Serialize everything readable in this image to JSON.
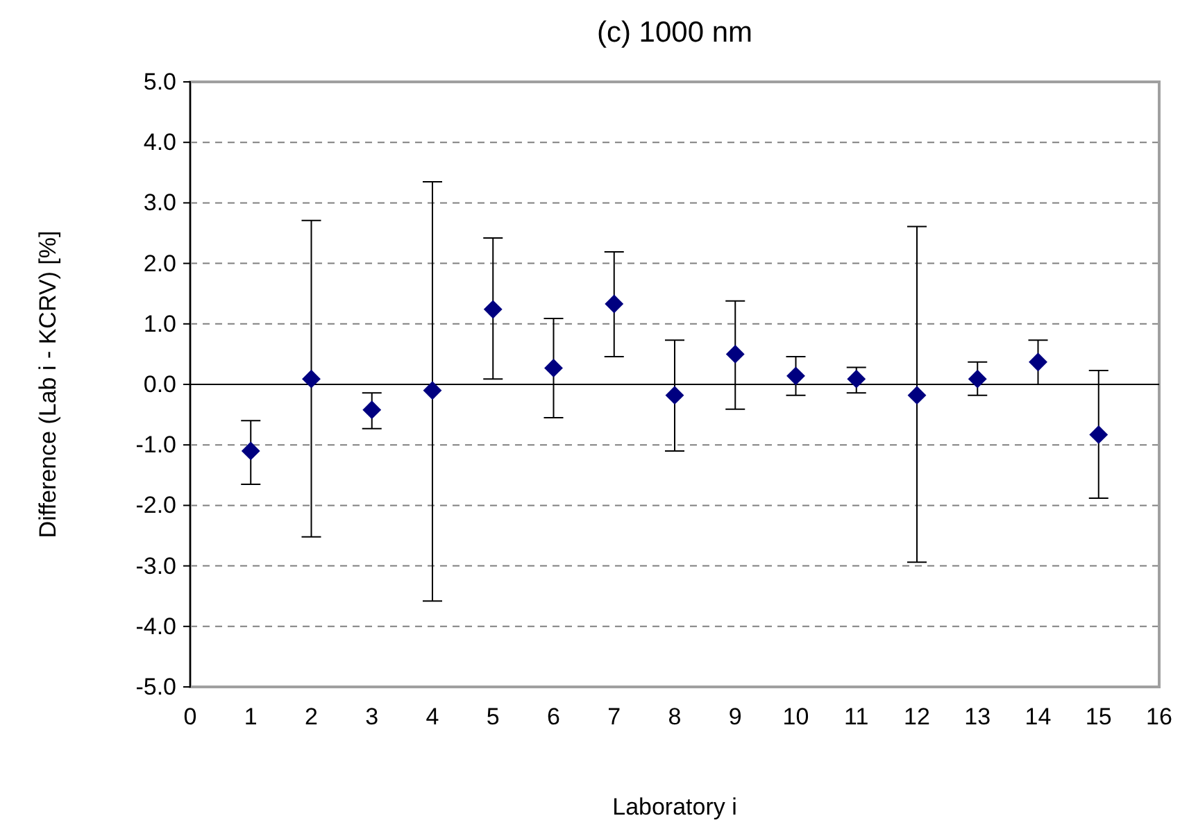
{
  "chart_data": {
    "type": "scatter",
    "title": "(c) 1000 nm",
    "xlabel": "Laboratory i",
    "ylabel": "Difference (Lab i - KCRV) [%]",
    "x": [
      1,
      2,
      3,
      4,
      5,
      6,
      7,
      8,
      9,
      10,
      11,
      12,
      13,
      14,
      15
    ],
    "series": [
      {
        "color": "#000080",
        "marker": "diamond",
        "values": [
          -1.1,
          0.09,
          -0.42,
          -0.1,
          1.24,
          0.27,
          1.33,
          -0.18,
          0.5,
          0.14,
          0.09,
          -0.18,
          0.09,
          0.37,
          -0.83
        ],
        "errors": [
          [
            -1.65,
            -0.6
          ],
          [
            -2.52,
            2.71
          ],
          [
            -0.73,
            -0.14
          ],
          [
            -3.58,
            3.35
          ],
          [
            0.09,
            2.42
          ],
          [
            -0.55,
            1.09
          ],
          [
            0.46,
            2.19
          ],
          [
            -1.1,
            0.73
          ],
          [
            -0.41,
            1.38
          ],
          [
            -0.18,
            0.46
          ],
          [
            -0.14,
            0.28
          ],
          [
            -2.94,
            2.61
          ],
          [
            -0.18,
            0.37
          ],
          [
            0,
            0.73
          ],
          [
            -1.88,
            0.23
          ]
        ]
      }
    ],
    "xlim": [
      0,
      16
    ],
    "xticks": [
      0,
      1,
      2,
      3,
      4,
      5,
      6,
      7,
      8,
      9,
      10,
      11,
      12,
      13,
      14,
      15,
      16
    ],
    "ylim": [
      -5,
      5
    ],
    "yticks": [
      {
        "value": -5,
        "label": "-5.0"
      },
      {
        "value": -4,
        "label": "-4.0"
      },
      {
        "value": -3,
        "label": "-3.0"
      },
      {
        "value": -2,
        "label": "-2.0"
      },
      {
        "value": -1,
        "label": "-1.0"
      },
      {
        "value": 0,
        "label": "0.0"
      },
      {
        "value": 1,
        "label": "1.0"
      },
      {
        "value": 2,
        "label": "2.0"
      },
      {
        "value": 3,
        "label": "3.0"
      },
      {
        "value": 4,
        "label": "4.0"
      },
      {
        "value": 5,
        "label": "5.0"
      }
    ],
    "grid": "y"
  }
}
